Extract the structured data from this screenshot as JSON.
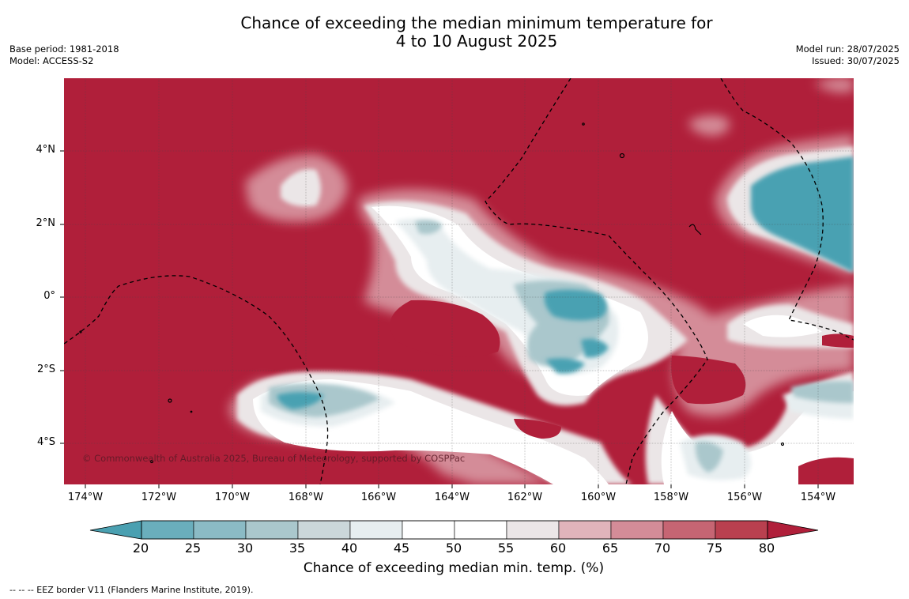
{
  "title": {
    "line1": "Chance of exceeding the median minimum temperature for",
    "line2": "4 to 10 August 2025"
  },
  "meta_left": {
    "base_period": "Base period: 1981-2018",
    "model": "Model: ACCESS-S2"
  },
  "meta_right": {
    "model_run": "Model run: 28/07/2025",
    "issued": "Issued: 30/07/2025"
  },
  "map": {
    "copyright": "© Commonwealth of Australia 2025, Bureau of Meteorology, supported by COSPPac",
    "lat_labels": [
      "4°N",
      "2°N",
      "0°",
      "2°S",
      "4°S"
    ],
    "lon_labels": [
      "174°W",
      "172°W",
      "170°W",
      "168°W",
      "166°W",
      "164°W",
      "162°W",
      "160°W",
      "158°W",
      "156°W",
      "154°W"
    ],
    "colors": {
      "high": "#b01f3a",
      "low": "#48a1b2"
    }
  },
  "colorbar": {
    "ticks": [
      "20",
      "25",
      "30",
      "35",
      "40",
      "45",
      "50",
      "55",
      "60",
      "65",
      "70",
      "75",
      "80"
    ],
    "colors": [
      "#4aa0b1",
      "#6aaebc",
      "#8bbbc5",
      "#aac7cc",
      "#cbd7da",
      "#e7eef0",
      "#ffffff",
      "#ffffff",
      "#ebe6e7",
      "#e0b4bb",
      "#d48c98",
      "#c66573",
      "#b9404f",
      "#b01f3a"
    ],
    "label": "Chance of exceeding median min. temp. (%)"
  },
  "footnote": "--  --  -- EEZ border V11 (Flanders Marine Institute, 2019)."
}
